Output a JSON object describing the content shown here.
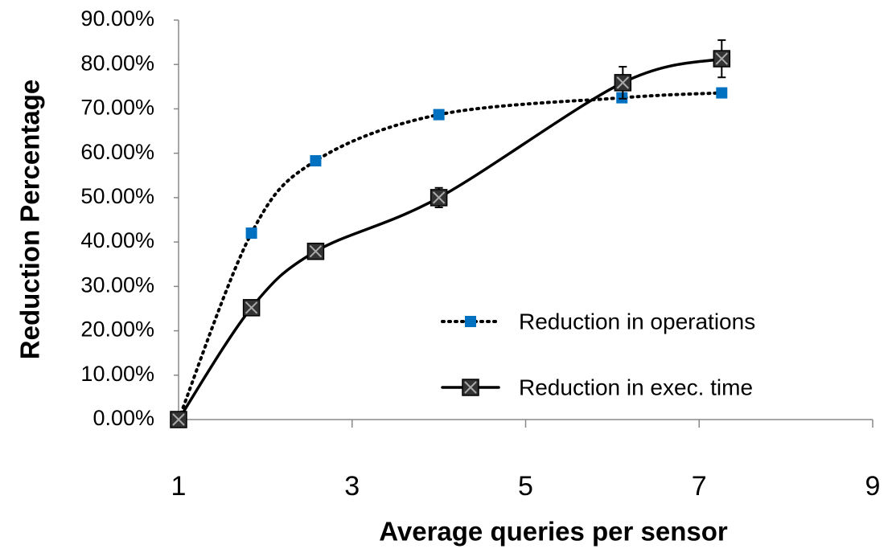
{
  "chart_data": {
    "type": "scatter-smooth",
    "xlabel": "Average queries per sensor",
    "ylabel": "Reduction Percentage",
    "xlim": [
      1,
      9
    ],
    "xticks": [
      1,
      3,
      5,
      7,
      9
    ],
    "ylim": [
      0,
      90
    ],
    "yticks": [
      {
        "value": 0,
        "label": "0.00%"
      },
      {
        "value": 10,
        "label": "10.00%"
      },
      {
        "value": 20,
        "label": "20.00%"
      },
      {
        "value": 30,
        "label": "30.00%"
      },
      {
        "value": 40,
        "label": "40.00%"
      },
      {
        "value": 50,
        "label": "50.00%"
      },
      {
        "value": 60,
        "label": "60.00%"
      },
      {
        "value": 70,
        "label": "70.00%"
      },
      {
        "value": 80,
        "label": "80.00%"
      },
      {
        "value": 90,
        "label": "90.00%"
      }
    ],
    "series": [
      {
        "name": "Reduction in operations",
        "color": "#0070c0",
        "line": "dotted",
        "marker": "square",
        "x": [
          1,
          1.84,
          2.58,
          4.0,
          6.11,
          7.26
        ],
        "values": [
          0,
          42.0,
          58.3,
          68.7,
          72.5,
          73.6
        ]
      },
      {
        "name": "Reduction in exec. time",
        "color": "#000000",
        "line": "solid",
        "marker": "x-square",
        "x": [
          1,
          1.84,
          2.58,
          4.0,
          6.12,
          7.26
        ],
        "values": [
          0,
          25.2,
          37.9,
          50.0,
          75.9,
          81.3
        ],
        "errors": [
          0,
          0,
          0,
          2.2,
          3.6,
          4.2
        ]
      }
    ]
  }
}
